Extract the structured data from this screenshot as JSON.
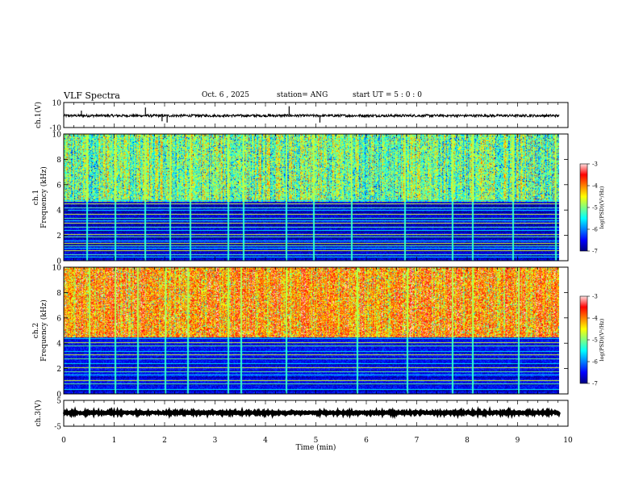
{
  "header": {
    "title": "VLF Spectra",
    "date": "Oct. 6 , 2025",
    "station": "station= ANG",
    "start": "start UT =  5 : 0 : 0"
  },
  "colors": {
    "colormap": [
      "#00007f",
      "#0000ff",
      "#0080ff",
      "#00ffff",
      "#80ff80",
      "#ffff00",
      "#ff8000",
      "#ff0000",
      "#ffe0e0"
    ]
  },
  "chart_data": [
    {
      "type": "line",
      "name": "ch1-waveform",
      "ylabel": "ch.1(V)",
      "ylim": [
        -10,
        10
      ],
      "yticks": [
        "10",
        "-10"
      ],
      "xlim": [
        0,
        10
      ],
      "x_extent": [
        0,
        9.83
      ],
      "baseline": -0.5,
      "noise_amplitude": 1.0,
      "spikes": [
        {
          "x": 0.35,
          "y": 3.5
        },
        {
          "x": 1.62,
          "y": 6
        },
        {
          "x": 1.95,
          "y": -5
        },
        {
          "x": 2.05,
          "y": -6
        },
        {
          "x": 4.47,
          "y": 7
        },
        {
          "x": 5.08,
          "y": -6
        }
      ]
    },
    {
      "type": "heatmap",
      "name": "ch1-spectrogram",
      "ylabel": "ch.1\nFrequency (kHz)",
      "ylim": [
        0,
        10
      ],
      "yticks": [
        "0",
        "2",
        "4",
        "6",
        "8",
        "10"
      ],
      "xlim": [
        0,
        10
      ],
      "x_extent": [
        0,
        9.83
      ],
      "colorbar": {
        "label": "log(PSD)(V²/Hz)",
        "range": [
          -7,
          -3
        ],
        "ticks": [
          "-3",
          "-4",
          "-5",
          "-6",
          "-7"
        ]
      },
      "band_edge_khz": 4.7,
      "level_above_edge": -5.0,
      "level_below_edge": -6.6,
      "tones_khz": [
        0.3,
        0.5,
        0.8,
        1.0,
        1.2,
        1.4,
        1.6,
        1.9,
        2.1,
        2.4,
        2.7,
        3.0,
        3.2,
        3.4,
        3.7,
        4.0,
        4.2,
        4.5,
        4.8
      ],
      "impulse_times_min": [
        0.45,
        1.0,
        1.6,
        2.1,
        2.5,
        3.25,
        3.55,
        4.4,
        4.95,
        5.7,
        6.75,
        7.7,
        8.1,
        8.9,
        9.75
      ]
    },
    {
      "type": "heatmap",
      "name": "ch2-spectrogram",
      "ylabel": "ch.2\nFrequency (kHz)",
      "ylim": [
        0,
        10
      ],
      "yticks": [
        "0",
        "2",
        "4",
        "6",
        "8",
        "10"
      ],
      "xlim": [
        0,
        10
      ],
      "x_extent": [
        0,
        9.83
      ],
      "colorbar": {
        "label": "log(PSD)(V²/Hz)",
        "range": [
          -7,
          -3
        ],
        "ticks": [
          "-3",
          "-4",
          "-5",
          "-6",
          "-7"
        ]
      },
      "band_edge_khz": 4.5,
      "level_above_edge": -4.0,
      "level_below_edge": -6.5,
      "tones_khz": [
        0.4,
        0.8,
        1.1,
        1.5,
        1.8,
        2.1,
        2.4,
        2.8,
        3.1,
        3.4,
        3.8,
        4.1,
        4.4
      ],
      "impulse_times_min": [
        0.5,
        1.0,
        1.45,
        2.0,
        2.45,
        3.25,
        3.5,
        4.4,
        5.8,
        6.8,
        7.7,
        8.1,
        9.0
      ]
    },
    {
      "type": "line",
      "name": "ch3-waveform",
      "ylabel": "ch.3(V)",
      "ylim": [
        -5,
        5
      ],
      "yticks": [
        "5",
        "-5"
      ],
      "xlim": [
        0,
        10
      ],
      "x_extent": [
        0,
        9.83
      ],
      "baseline": 0.2,
      "noise_amplitude": 0.3
    }
  ],
  "xaxis": {
    "label": "Time  (min)",
    "ticks": [
      "0",
      "1",
      "2",
      "3",
      "4",
      "5",
      "6",
      "7",
      "8",
      "9",
      "10"
    ]
  }
}
